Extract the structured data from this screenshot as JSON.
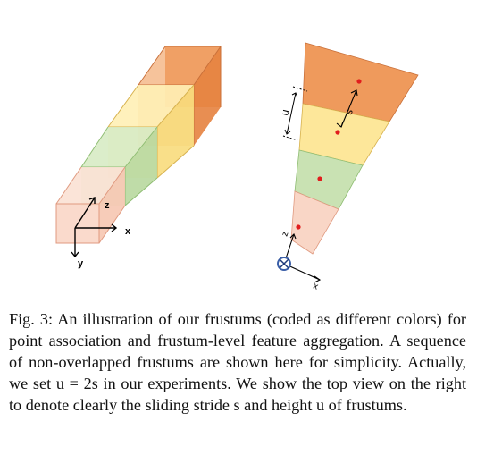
{
  "figure": {
    "left_axes": {
      "z": "z",
      "x": "x",
      "y": "y"
    },
    "top_view": {
      "u": "u",
      "s": "s",
      "z": "z",
      "x": "x"
    },
    "colors": {
      "orange": "#ef9a5c",
      "yellow": "#fde79a",
      "green": "#c9e2b3",
      "pink": "#f9d6c6",
      "point": "#e11d1d",
      "sensor": "#3b5fa8"
    }
  },
  "caption": {
    "text": "Fig. 3: An illustration of our frustums (coded as different colors) for point association and frustum-level feature aggregation. A sequence of non-overlapped frustums are shown here for simplicity. Actually, we set u = 2s in our experiments. We show the top view on the right to denote clearly the sliding stride s and height u of frustums."
  }
}
